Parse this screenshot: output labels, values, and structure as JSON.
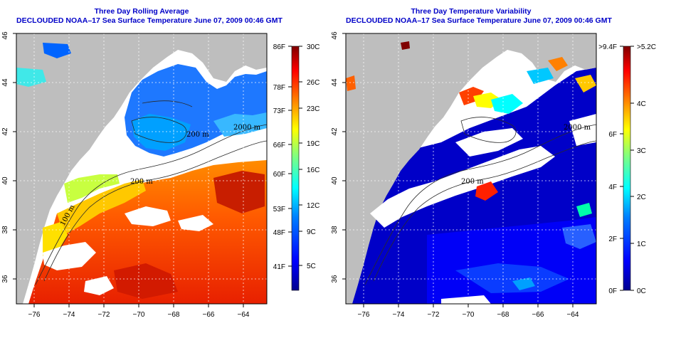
{
  "left_panel": {
    "title_line1": "Three Day Rolling Average",
    "title_line2": "DECLOUDED NOAA–17 Sea Surface Temperature June 07, 2009 00:46 GMT",
    "colorbar": {
      "fahrenheit": [
        "86F",
        "78F",
        "73F",
        "66F",
        "60F",
        "53F",
        "48F",
        "41F"
      ],
      "celsius": [
        "30C",
        "26C",
        "23C",
        "19C",
        "16C",
        "12C",
        "9C",
        "5C"
      ],
      "range_c": [
        2,
        30
      ],
      "colors": [
        "#00008f",
        "#0000ff",
        "#0080ff",
        "#00ffff",
        "#80ff80",
        "#ffff00",
        "#ff8000",
        "#ff0000",
        "#800000"
      ]
    },
    "contour_labels": [
      "200 m",
      "2000 m",
      "200 m",
      "100 m"
    ]
  },
  "right_panel": {
    "title_line1": "Three Day Temperature Variability",
    "title_line2": "DECLOUDED NOAA–17 Sea Surface Temperature June 07, 2009 00:46 GMT",
    "colorbar": {
      "fahrenheit": [
        ">9.4F",
        "6F",
        "4F",
        "2F",
        "0F"
      ],
      "celsius": [
        ">5.2C",
        "4C",
        "3C",
        "2C",
        "1C",
        "0C"
      ],
      "range_c": [
        0,
        5.2
      ],
      "colors": [
        "#00008f",
        "#0000ff",
        "#0080ff",
        "#00ffff",
        "#80ff80",
        "#ffff00",
        "#ff8000",
        "#ff0000",
        "#800000"
      ]
    },
    "contour_labels": [
      "200 m",
      "2000 m"
    ]
  },
  "axes": {
    "lon_ticks": [
      "−76",
      "−74",
      "−72",
      "−70",
      "−68",
      "−66",
      "−64"
    ],
    "lat_ticks": [
      "36",
      "38",
      "40",
      "42",
      "44",
      "46"
    ],
    "lon_range": [
      -77.5,
      -63
    ],
    "lat_range": [
      35,
      46
    ]
  },
  "colors": {
    "land": "#bebebe",
    "cloud": "#ffffff",
    "title": "#0000c8"
  }
}
